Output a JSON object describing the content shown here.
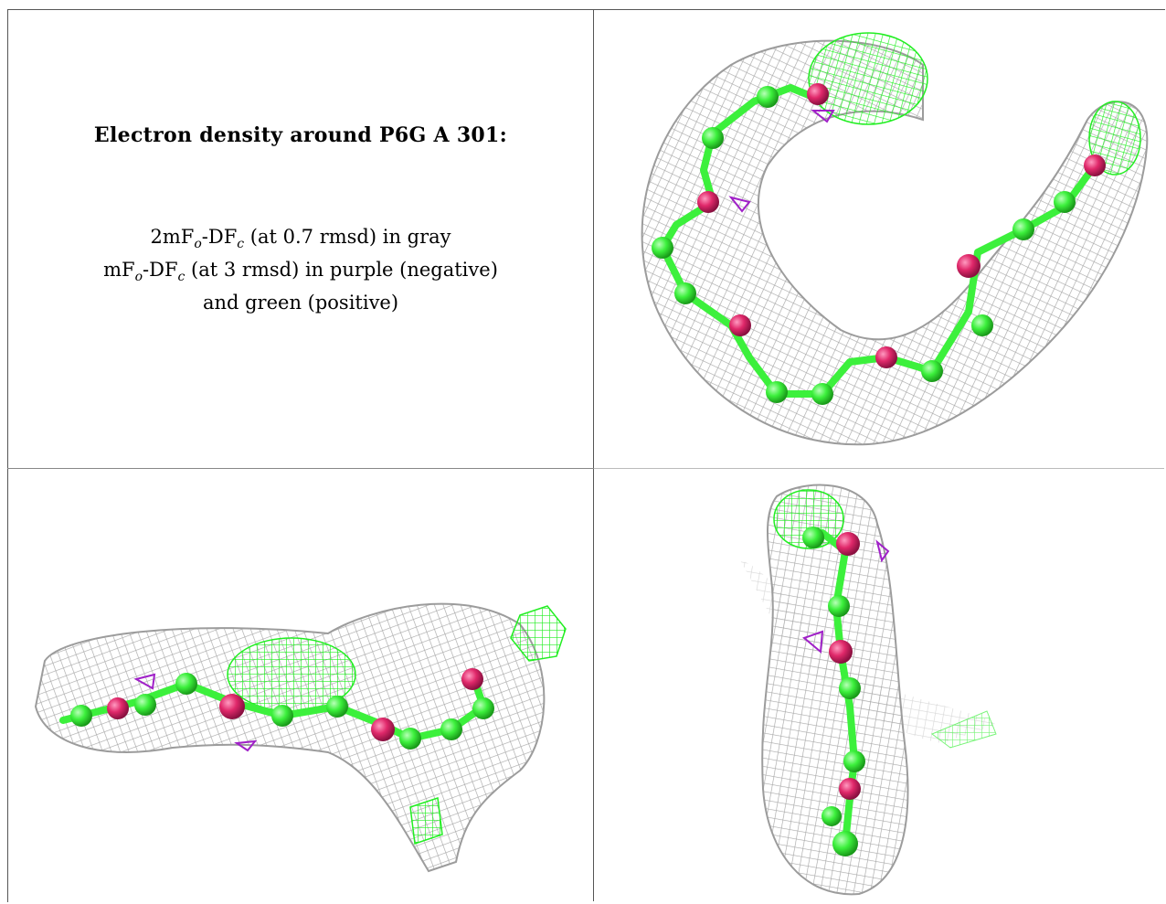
{
  "title": "Electron density around P6G A 301:",
  "legend": {
    "line1": {
      "a": "2mF",
      "a_sub": "o",
      "b": "-DF",
      "b_sub": "c",
      "rest": " (at 0.7 rmsd) in gray"
    },
    "line2": {
      "a": "mF",
      "a_sub": "o",
      "b": "-DF",
      "b_sub": "c",
      "rest": " (at 3 rmsd) in purple (negative)"
    },
    "line3": "and green (positive)"
  },
  "colors": {
    "mesh_gray": "#a8a8a8",
    "carbon_green": "#3cf03c",
    "oxygen_pink": "#e0286a",
    "positive_density": "#22ee22",
    "negative_density": "#a020c8"
  },
  "panels": [
    {
      "name": "view-top",
      "icon": "density-mesh-ring"
    },
    {
      "name": "view-side",
      "icon": "density-mesh-elongated"
    },
    {
      "name": "view-end",
      "icon": "density-mesh-vertical"
    }
  ]
}
